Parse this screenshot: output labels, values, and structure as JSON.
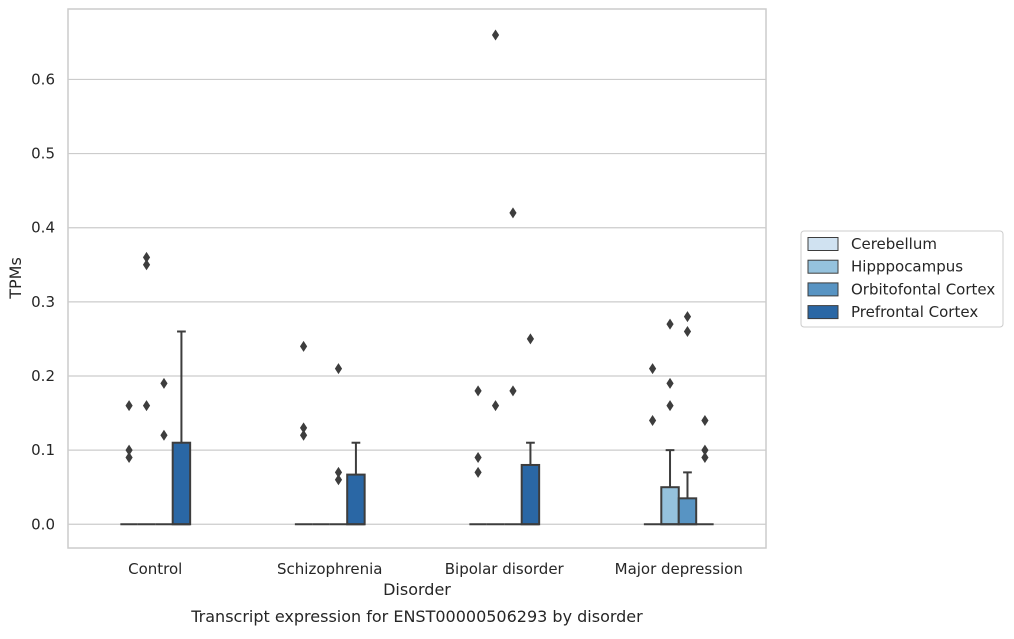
{
  "caption": "Transcript expression for ENST00000506293 by disorder",
  "chart_data": {
    "type": "box",
    "xlabel": "Disorder",
    "ylabel": "TPMs",
    "ylim": [
      -0.032,
      0.695
    ],
    "yticks": [
      0.0,
      0.1,
      0.2,
      0.3,
      0.4,
      0.5,
      0.6
    ],
    "ytick_labels": [
      "0.0",
      "0.1",
      "0.2",
      "0.3",
      "0.4",
      "0.5",
      "0.6"
    ],
    "grid": true,
    "legend_position": "outside-right",
    "categories": [
      "Control",
      "Schizophrenia",
      "Bipolar disorder",
      "Major depression"
    ],
    "series": [
      {
        "name": "Cerebellum",
        "color": "#d0e2f1",
        "boxes": [
          {
            "q1": 0,
            "median": 0,
            "q3": 0,
            "whislo": 0,
            "whishi": 0,
            "fliers": [
              0.09,
              0.1,
              0.16
            ]
          },
          {
            "q1": 0,
            "median": 0,
            "q3": 0,
            "whislo": 0,
            "whishi": 0,
            "fliers": [
              0.12,
              0.13,
              0.24
            ]
          },
          {
            "q1": 0,
            "median": 0,
            "q3": 0,
            "whislo": 0,
            "whishi": 0,
            "fliers": [
              0.07,
              0.09,
              0.18
            ]
          },
          {
            "q1": 0,
            "median": 0,
            "q3": 0,
            "whislo": 0,
            "whishi": 0,
            "fliers": [
              0.14,
              0.21
            ]
          }
        ]
      },
      {
        "name": "Hipppocampus",
        "color": "#95c2dd",
        "boxes": [
          {
            "q1": 0,
            "median": 0,
            "q3": 0,
            "whislo": 0,
            "whishi": 0,
            "fliers": [
              0.16,
              0.35,
              0.36
            ]
          },
          {
            "q1": 0,
            "median": 0,
            "q3": 0,
            "whislo": 0,
            "whishi": 0,
            "fliers": []
          },
          {
            "q1": 0,
            "median": 0,
            "q3": 0,
            "whislo": 0,
            "whishi": 0,
            "fliers": [
              0.16,
              0.66
            ]
          },
          {
            "q1": 0,
            "median": 0,
            "q3": 0.05,
            "whislo": 0,
            "whishi": 0.1,
            "fliers": [
              0.16,
              0.19,
              0.27
            ]
          }
        ]
      },
      {
        "name": "Orbitofontal Cortex",
        "color": "#5894c3",
        "boxes": [
          {
            "q1": 0,
            "median": 0,
            "q3": 0,
            "whislo": 0,
            "whishi": 0,
            "fliers": [
              0.12,
              0.19
            ]
          },
          {
            "q1": 0,
            "median": 0,
            "q3": 0,
            "whislo": 0,
            "whishi": 0,
            "fliers": [
              0.06,
              0.07,
              0.21
            ]
          },
          {
            "q1": 0,
            "median": 0,
            "q3": 0,
            "whislo": 0,
            "whishi": 0,
            "fliers": [
              0.18,
              0.42
            ]
          },
          {
            "q1": 0,
            "median": 0,
            "q3": 0.035,
            "whislo": 0,
            "whishi": 0.07,
            "fliers": [
              0.26,
              0.28
            ]
          }
        ]
      },
      {
        "name": "Prefrontal Cortex",
        "color": "#2a67a5",
        "boxes": [
          {
            "q1": 0,
            "median": 0,
            "q3": 0.11,
            "whislo": 0,
            "whishi": 0.26,
            "fliers": []
          },
          {
            "q1": 0,
            "median": 0,
            "q3": 0.067,
            "whislo": 0,
            "whishi": 0.11,
            "fliers": []
          },
          {
            "q1": 0,
            "median": 0,
            "q3": 0.08,
            "whislo": 0,
            "whishi": 0.11,
            "fliers": [
              0.25
            ]
          },
          {
            "q1": 0,
            "median": 0,
            "q3": 0,
            "whislo": 0,
            "whishi": 0,
            "fliers": [
              0.09,
              0.1,
              0.14
            ]
          }
        ]
      }
    ]
  }
}
